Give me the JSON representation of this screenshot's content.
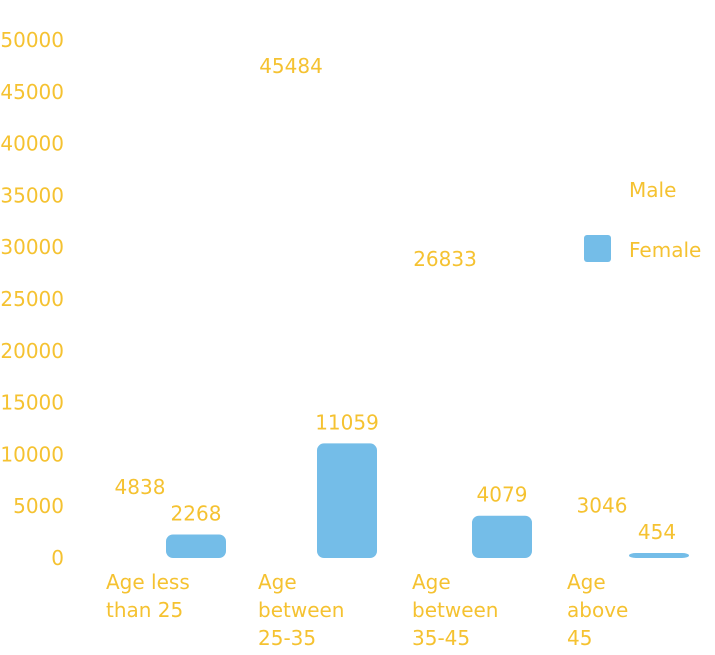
{
  "chart_data": {
    "type": "bar",
    "categories": [
      [
        "Age less",
        "than 25"
      ],
      [
        "Age",
        "between",
        "25-35"
      ],
      [
        "Age",
        "between",
        "35-45"
      ],
      [
        "Age",
        "above",
        "45"
      ]
    ],
    "series": [
      {
        "name": "Male",
        "values": [
          4838,
          45484,
          26833,
          3046
        ],
        "color": "#FFFFFF"
      },
      {
        "name": "Female",
        "values": [
          2268,
          11059,
          4079,
          454
        ],
        "color": "#74BDE8"
      }
    ],
    "yticks": [
      "0",
      "5000",
      "10000",
      "15000",
      "20000",
      "25000",
      "30000",
      "35000",
      "40000",
      "45000",
      "50000"
    ],
    "ylim": [
      0,
      50000
    ],
    "grid": false,
    "legend_position": "right",
    "label_color": "#F5C231"
  }
}
